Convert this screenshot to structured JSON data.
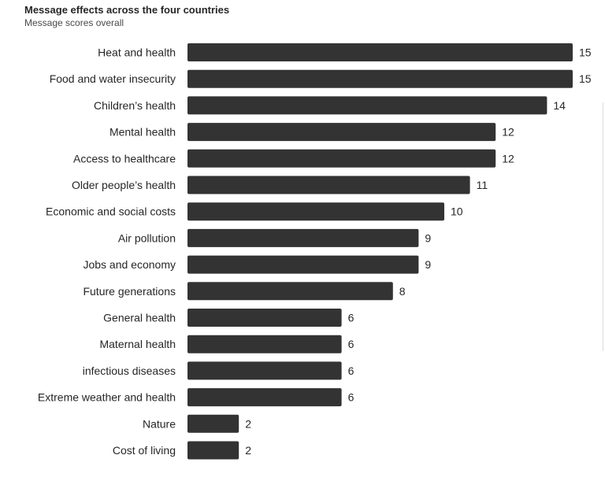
{
  "chart_data": {
    "type": "bar",
    "orientation": "horizontal",
    "title": "Message effects across the four countries",
    "subtitle": "Message scores overall",
    "xlabel": "",
    "ylabel": "",
    "xlim": [
      0,
      15
    ],
    "grid": false,
    "bar_color": "#333333",
    "categories": [
      "Heat and health",
      "Food and water insecurity",
      "Children’s health",
      "Mental health",
      "Access to healthcare",
      "Older people’s health",
      "Economic and social costs",
      "Air pollution",
      "Jobs and economy",
      "Future generations",
      "General health",
      "Maternal health",
      "infectious diseases",
      "Extreme weather and health",
      "Nature",
      "Cost of living"
    ],
    "values": [
      15,
      15,
      14,
      12,
      12,
      11,
      10,
      9,
      9,
      8,
      6,
      6,
      6,
      6,
      2,
      2
    ]
  }
}
